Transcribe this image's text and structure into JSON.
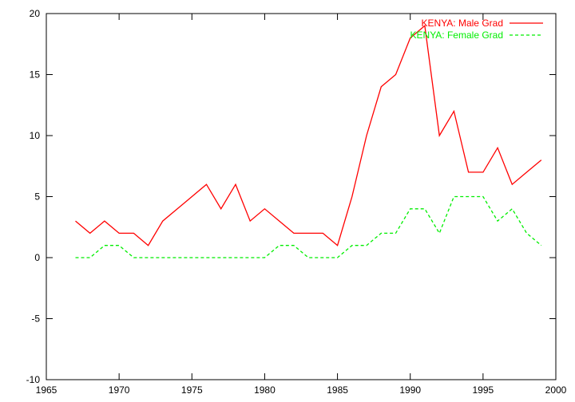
{
  "chart_data": {
    "type": "line",
    "title": "",
    "xlabel": "",
    "ylabel": "",
    "xlim": [
      1965,
      2000
    ],
    "ylim": [
      -10,
      20
    ],
    "xticks": [
      1965,
      1970,
      1975,
      1980,
      1985,
      1990,
      1995,
      2000
    ],
    "yticks": [
      -10,
      -5,
      0,
      5,
      10,
      15,
      20
    ],
    "grid": false,
    "legend_position": "top-right",
    "series": [
      {
        "name": "KENYA: Male Grad",
        "color": "#ff0000",
        "dash": "solid",
        "x": [
          1967,
          1968,
          1969,
          1970,
          1971,
          1972,
          1973,
          1974,
          1975,
          1976,
          1977,
          1978,
          1979,
          1980,
          1981,
          1982,
          1983,
          1984,
          1985,
          1986,
          1987,
          1988,
          1989,
          1990,
          1991,
          1992,
          1993,
          1994,
          1995,
          1996,
          1997,
          1998,
          1999
        ],
        "y": [
          3,
          2,
          3,
          2,
          2,
          1,
          3,
          4,
          5,
          6,
          4,
          6,
          3,
          4,
          3,
          2,
          2,
          2,
          1,
          5,
          10,
          14,
          15,
          18,
          19,
          10,
          12,
          7,
          7,
          9,
          6,
          7,
          8
        ]
      },
      {
        "name": "KENYA: Female Grad",
        "color": "#00ee00",
        "dash": "dashed",
        "x": [
          1967,
          1968,
          1969,
          1970,
          1971,
          1972,
          1973,
          1974,
          1975,
          1976,
          1977,
          1978,
          1979,
          1980,
          1981,
          1982,
          1983,
          1984,
          1985,
          1986,
          1987,
          1988,
          1989,
          1990,
          1991,
          1992,
          1993,
          1994,
          1995,
          1996,
          1997,
          1998,
          1999
        ],
        "y": [
          0,
          0,
          1,
          1,
          0,
          0,
          0,
          0,
          0,
          0,
          0,
          0,
          0,
          0,
          1,
          1,
          0,
          0,
          0,
          1,
          1,
          2,
          2,
          4,
          4,
          2,
          5,
          5,
          5,
          3,
          4,
          2,
          1
        ]
      }
    ]
  }
}
